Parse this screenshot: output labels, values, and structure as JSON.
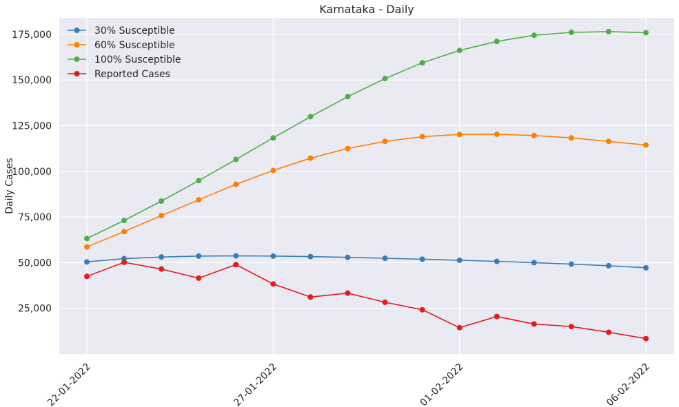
{
  "chart_data": {
    "type": "line",
    "title": "Karnataka - Daily",
    "xlabel": "",
    "ylabel": "Daily Cases",
    "x": [
      "22-01-2022",
      "23-01-2022",
      "24-01-2022",
      "25-01-2022",
      "26-01-2022",
      "27-01-2022",
      "28-01-2022",
      "29-01-2022",
      "30-01-2022",
      "31-01-2022",
      "01-02-2022",
      "02-02-2022",
      "03-02-2022",
      "04-02-2022",
      "05-02-2022",
      "06-02-2022"
    ],
    "xticks": [
      "22-01-2022",
      "27-01-2022",
      "01-02-2022",
      "06-02-2022"
    ],
    "ylim": [
      0,
      184000
    ],
    "yticks": [
      25000,
      50000,
      75000,
      100000,
      125000,
      150000,
      175000
    ],
    "ytick_labels": [
      "25,000",
      "50,000",
      "75,000",
      "100,000",
      "125,000",
      "150,000",
      "175,000"
    ],
    "grid": true,
    "legend_position": "top-left",
    "series": [
      {
        "name": "30% Susceptible",
        "color": "#377eb8",
        "values": [
          50400,
          52200,
          53100,
          53600,
          53700,
          53600,
          53300,
          52900,
          52400,
          51900,
          51300,
          50700,
          50000,
          49200,
          48300,
          47200
        ]
      },
      {
        "name": "60% Susceptible",
        "color": "#ff7f00",
        "values": [
          58600,
          67000,
          75800,
          84400,
          92900,
          100500,
          107200,
          112500,
          116400,
          119000,
          120200,
          120300,
          119600,
          118300,
          116400,
          114400
        ]
      },
      {
        "name": "100% Susceptible",
        "color": "#4daf4a",
        "values": [
          63200,
          73100,
          83700,
          94900,
          106500,
          118300,
          129900,
          140900,
          150800,
          159400,
          166200,
          171100,
          174500,
          176100,
          176500,
          175900
        ]
      },
      {
        "name": "Reported Cases",
        "color": "#e41a1c",
        "values": [
          42500,
          50200,
          46500,
          41500,
          48900,
          38300,
          31200,
          33300,
          28300,
          24200,
          14400,
          20500,
          16400,
          15000,
          11900,
          8400
        ]
      }
    ]
  }
}
